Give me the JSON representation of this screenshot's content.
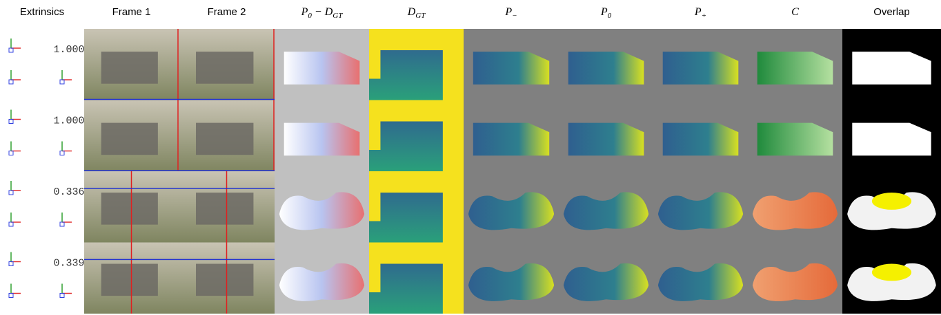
{
  "headers": [
    {
      "label": "Extrinsics"
    },
    {
      "label": "Frame 1"
    },
    {
      "label": "Frame 2"
    },
    {
      "math": [
        {
          "t": "P",
          "sub": "0"
        },
        {
          "t": " − "
        },
        {
          "t": "D",
          "sub": "GT"
        }
      ]
    },
    {
      "math": [
        {
          "t": "D",
          "sub": "GT"
        }
      ]
    },
    {
      "math": [
        {
          "t": "P",
          "sub": "−"
        }
      ]
    },
    {
      "math": [
        {
          "t": "P",
          "sub": "0"
        }
      ]
    },
    {
      "math": [
        {
          "t": "P",
          "sub": "+"
        }
      ]
    },
    {
      "math": [
        {
          "t": "C"
        }
      ]
    },
    {
      "label": "Overlap"
    }
  ],
  "rows": [
    {
      "value": "1.000"
    },
    {
      "value": "1.000"
    },
    {
      "value": "0.336"
    },
    {
      "value": "0.339"
    }
  ]
}
